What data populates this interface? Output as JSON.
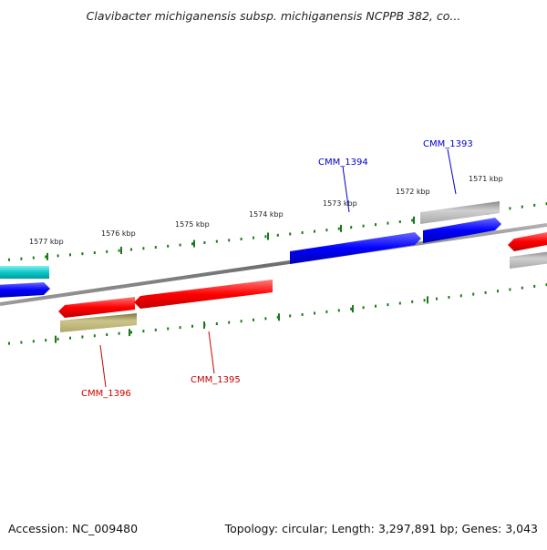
{
  "title": "Clavibacter michiganensis subsp. michiganensis NCPPB 382, co...",
  "accession_label": "Accession: NC_009480",
  "summary_label": "Topology: circular; Length: 3,297,891 bp; Genes: 3,043",
  "colors": {
    "backbone": "#7f7f7f",
    "tick_mark": "#1a7a1a",
    "label_forward": "#0000cc",
    "label_reverse": "#cc0000",
    "gene_blue": "#0000ff",
    "gene_red": "#ff0000",
    "gene_cyan": "#00cccc",
    "gene_grey": "#b0b0b0",
    "gene_olive": "#c8c082"
  },
  "scale_labels": [
    "1577 kbp",
    "1576 kbp",
    "1575 kbp",
    "1574 kbp",
    "1573 kbp",
    "1572 kbp",
    "1571 kbp"
  ],
  "gene_labels": [
    {
      "text": "CMM_1394",
      "strand": "forward"
    },
    {
      "text": "CMM_1393",
      "strand": "forward"
    },
    {
      "text": "CMM_1396",
      "strand": "reverse"
    },
    {
      "text": "CMM_1395",
      "strand": "reverse"
    }
  ]
}
